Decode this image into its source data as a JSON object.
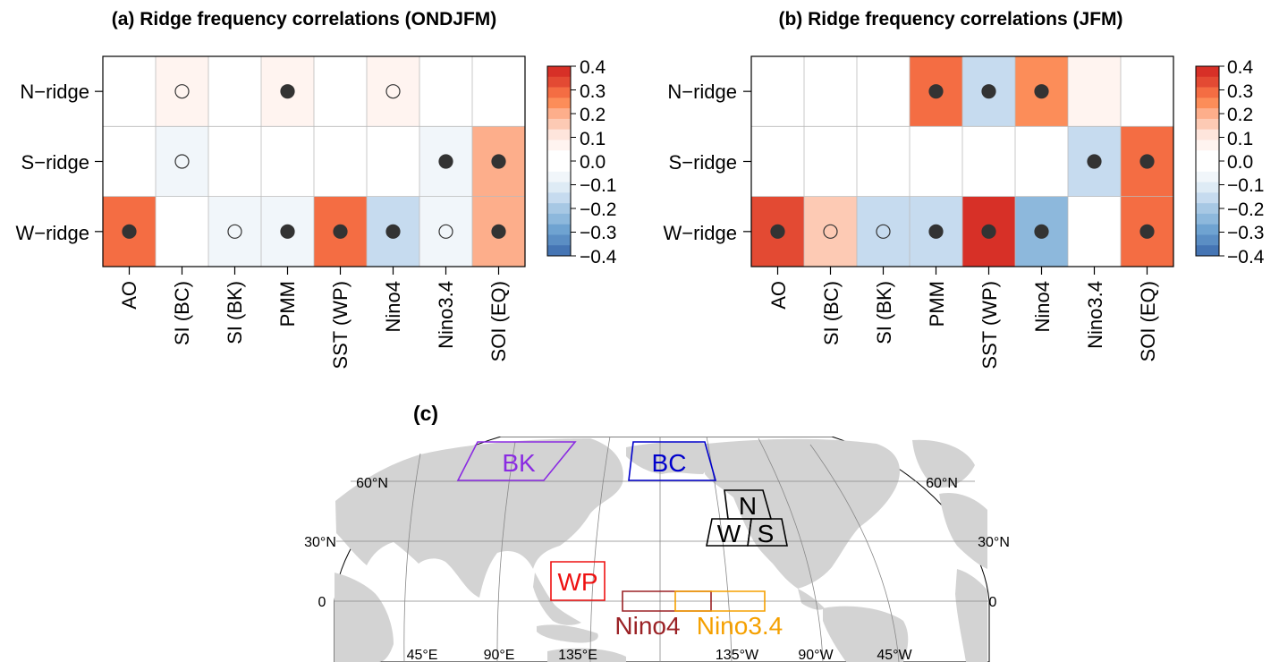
{
  "chart_data": [
    {
      "type": "heatmap",
      "title": "(a) Ridge frequency correlations (ONDJFM)",
      "rows": [
        "N−ridge",
        "S−ridge",
        "W−ridge"
      ],
      "columns": [
        "AO",
        "SI (BC)",
        "SI (BK)",
        "PMM",
        "SST (WP)",
        "Nino4",
        "Nino3.4",
        "SOI (EQ)"
      ],
      "values": [
        [
          0.0,
          0.05,
          0.0,
          0.08,
          0.0,
          0.06,
          0.0,
          0.0
        ],
        [
          0.0,
          -0.05,
          0.0,
          0.0,
          0.0,
          0.0,
          -0.07,
          0.2
        ],
        [
          0.27,
          0.0,
          -0.05,
          -0.05,
          0.27,
          -0.15,
          -0.07,
          0.2
        ]
      ],
      "markers": [
        [
          "",
          "open",
          "",
          "filled",
          "",
          "open",
          "",
          ""
        ],
        [
          "",
          "open",
          "",
          "",
          "",
          "",
          "filled",
          "filled"
        ],
        [
          "filled",
          "",
          "open",
          "filled",
          "filled",
          "filled",
          "open",
          "filled"
        ]
      ],
      "colorbar": {
        "ticks": [
          "0.4",
          "0.3",
          "0.2",
          "0.1",
          "0.0",
          "−0.1",
          "−0.2",
          "−0.3",
          "−0.4"
        ],
        "range": [
          -0.4,
          0.4
        ],
        "levels": [
          "#d73027",
          "#e34a33",
          "#f46d43",
          "#fc8d59",
          "#fdae8b",
          "#fdcab4",
          "#fee5dc",
          "#fff4f0",
          "#ffffff",
          "#ffffff",
          "#f1f6fa",
          "#deebf5",
          "#c6dbef",
          "#a7c8e4",
          "#8db8dc",
          "#6fa3d1",
          "#5b8ec4",
          "#4575b4"
        ]
      }
    },
    {
      "type": "heatmap",
      "title": "(b) Ridge frequency correlations (JFM)",
      "rows": [
        "N−ridge",
        "S−ridge",
        "W−ridge"
      ],
      "columns": [
        "AO",
        "SI (BC)",
        "SI (BK)",
        "PMM",
        "SST (WP)",
        "Nino4",
        "Nino3.4",
        "SOI (EQ)"
      ],
      "values": [
        [
          0.0,
          0.0,
          0.0,
          0.28,
          -0.14,
          0.24,
          0.05,
          -0.03
        ],
        [
          0.0,
          -0.04,
          0.0,
          0.0,
          0.0,
          -0.03,
          -0.15,
          0.27
        ],
        [
          0.32,
          0.17,
          -0.15,
          -0.15,
          0.36,
          -0.25,
          -0.03,
          0.27
        ]
      ],
      "markers": [
        [
          "",
          "",
          "",
          "filled",
          "filled",
          "filled",
          "",
          ""
        ],
        [
          "",
          "",
          "",
          "",
          "",
          "",
          "filled",
          "filled"
        ],
        [
          "filled",
          "open",
          "open",
          "filled",
          "filled",
          "filled",
          "",
          "filled"
        ]
      ],
      "colorbar": {
        "ticks": [
          "0.4",
          "0.3",
          "0.2",
          "0.1",
          "0.0",
          "−0.1",
          "−0.2",
          "−0.3",
          "−0.4"
        ],
        "range": [
          -0.4,
          0.4
        ],
        "levels": [
          "#d73027",
          "#e34a33",
          "#f46d43",
          "#fc8d59",
          "#fdae8b",
          "#fdcab4",
          "#fee5dc",
          "#fff4f0",
          "#ffffff",
          "#ffffff",
          "#f1f6fa",
          "#deebf5",
          "#c6dbef",
          "#a7c8e4",
          "#8db8dc",
          "#6fa3d1",
          "#5b8ec4",
          "#4575b4"
        ]
      }
    }
  ],
  "map": {
    "title": "(c)",
    "lat_labels_left": [
      "60°N",
      "30°N",
      "0"
    ],
    "lat_labels_right": [
      "60°N",
      "30°N",
      "0"
    ],
    "lon_labels": [
      "45°E",
      "90°E",
      "135°E",
      "135°W",
      "90°W",
      "45°W"
    ],
    "regions": [
      {
        "label": "BK",
        "color": "#8a2be2"
      },
      {
        "label": "BC",
        "color": "#0000cc"
      },
      {
        "label": "WP",
        "color": "#ee1111"
      },
      {
        "label": "Nino4",
        "color": "#9b2226"
      },
      {
        "label": "Nino3.4",
        "color": "#f5a000"
      },
      {
        "label": "N",
        "color": "#000000"
      },
      {
        "label": "W",
        "color": "#000000"
      },
      {
        "label": "S",
        "color": "#000000"
      }
    ],
    "land_color": "#d3d3d3"
  }
}
